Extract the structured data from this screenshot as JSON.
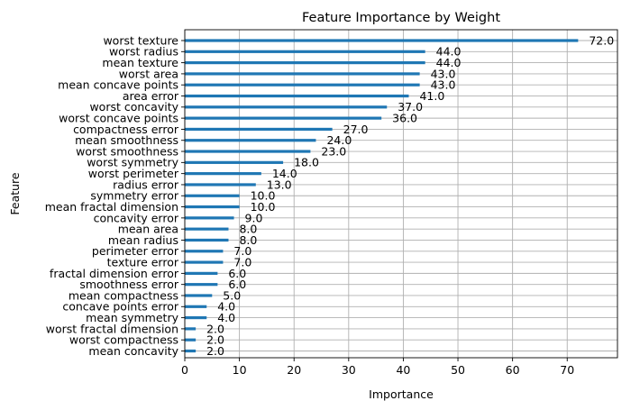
{
  "chart_data": {
    "type": "bar",
    "orientation": "horizontal",
    "title": "Feature Importance by Weight",
    "xlabel": "Importance",
    "ylabel": "Feature",
    "xlim": [
      0,
      79.2
    ],
    "xticks": [
      0,
      10,
      20,
      30,
      40,
      50,
      60,
      70
    ],
    "grid": true,
    "bar_color": "#1f77b4",
    "categories": [
      "worst texture",
      "worst radius",
      "mean texture",
      "worst area",
      "mean concave points",
      "area error",
      "worst concavity",
      "worst concave points",
      "compactness error",
      "mean smoothness",
      "worst smoothness",
      "worst symmetry",
      "worst perimeter",
      "radius error",
      "symmetry error",
      "mean fractal dimension",
      "concavity error",
      "mean area",
      "mean radius",
      "perimeter error",
      "texture error",
      "fractal dimension error",
      "smoothness error",
      "mean compactness",
      "concave points error",
      "mean symmetry",
      "worst fractal dimension",
      "worst compactness",
      "mean concavity"
    ],
    "values": [
      72,
      44,
      44,
      43,
      43,
      41,
      37,
      36,
      27,
      24,
      23,
      18,
      14,
      13,
      10,
      10,
      9,
      8,
      8,
      7,
      7,
      6,
      6,
      5,
      4,
      4,
      2,
      2,
      2
    ],
    "value_labels": [
      "72.0",
      "44.0",
      "44.0",
      "43.0",
      "43.0",
      "41.0",
      "37.0",
      "36.0",
      "27.0",
      "24.0",
      "23.0",
      "18.0",
      "14.0",
      "13.0",
      "10.0",
      "10.0",
      "9.0",
      "8.0",
      "8.0",
      "7.0",
      "7.0",
      "6.0",
      "6.0",
      "5.0",
      "4.0",
      "4.0",
      "2.0",
      "2.0",
      "2.0"
    ]
  }
}
